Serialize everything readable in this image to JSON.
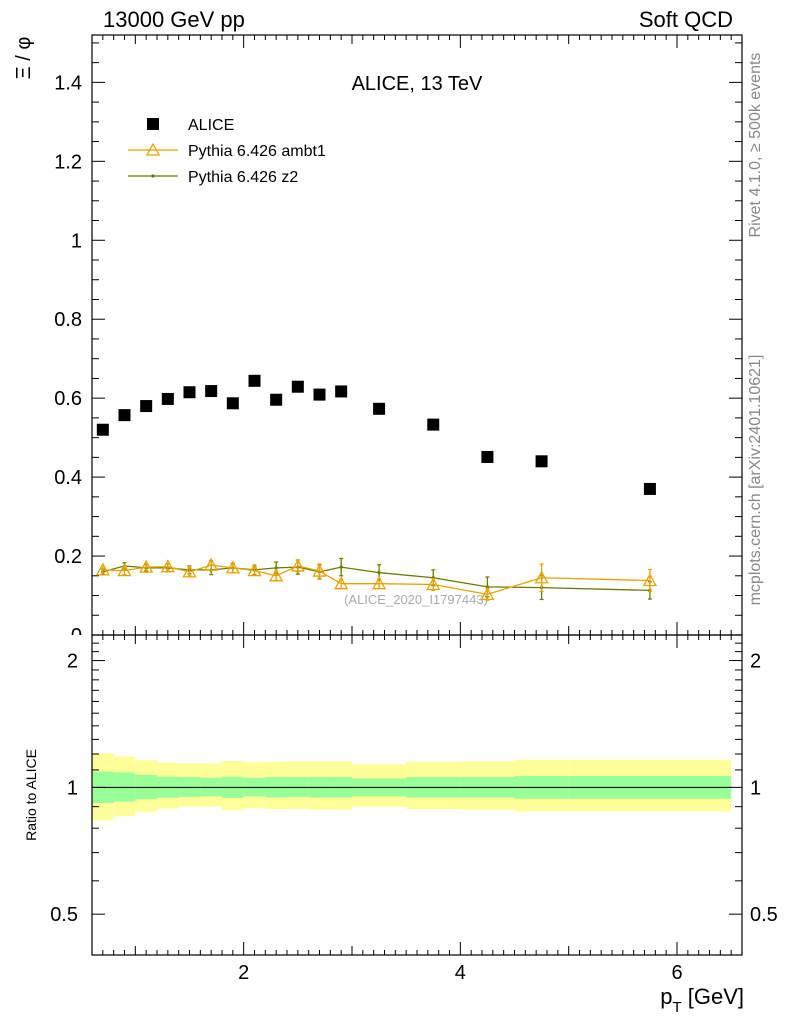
{
  "header": {
    "left": "13000 GeV pp",
    "right": "Soft QCD"
  },
  "side_labels": {
    "rivet": "Rivet 4.1.0, ≥ 500k events",
    "mcplots": "mcplots.cern.ch [arXiv:2401.10621]"
  },
  "chart_data": {
    "type": "scatter",
    "title": "ALICE, 13 TeV",
    "watermark": "(ALICE_2020_I1797443)",
    "xlabel": "p_T [GeV]",
    "ylabel": "Ξ / φ",
    "xlim": [
      0.6,
      6.6
    ],
    "ylim": [
      0,
      1.52
    ],
    "x_ticks": [
      2,
      4,
      6
    ],
    "y_ticks": [
      0.2,
      0.4,
      0.6,
      0.8,
      1,
      1.2,
      1.4
    ],
    "legend_position": "top-left",
    "series": [
      {
        "name": "ALICE",
        "marker": "square",
        "color": "#000000",
        "x": [
          0.7,
          0.9,
          1.1,
          1.3,
          1.5,
          1.7,
          1.9,
          2.1,
          2.3,
          2.5,
          2.7,
          2.9,
          3.25,
          3.75,
          4.25,
          4.75,
          5.75
        ],
        "values": [
          0.52,
          0.557,
          0.58,
          0.598,
          0.615,
          0.618,
          0.587,
          0.644,
          0.596,
          0.629,
          0.609,
          0.617,
          0.573,
          0.533,
          0.451,
          0.44,
          0.37
        ]
      },
      {
        "name": "Pythia 6.426 ambt1",
        "marker": "triangle",
        "color": "#e8a200",
        "x": [
          0.7,
          0.9,
          1.1,
          1.3,
          1.5,
          1.7,
          1.9,
          2.1,
          2.3,
          2.5,
          2.7,
          2.9,
          3.25,
          3.75,
          4.25,
          4.75,
          5.75
        ],
        "values": [
          0.165,
          0.163,
          0.172,
          0.173,
          0.16,
          0.177,
          0.17,
          0.163,
          0.15,
          0.175,
          0.162,
          0.13,
          0.13,
          0.128,
          0.103,
          0.145,
          0.138
        ],
        "errors": [
          0.008,
          0.01,
          0.008,
          0.008,
          0.01,
          0.012,
          0.012,
          0.012,
          0.012,
          0.015,
          0.018,
          0.012,
          0.012,
          0.015,
          0.015,
          0.035,
          0.028
        ]
      },
      {
        "name": "Pythia 6.426 z2",
        "marker": "dot",
        "color": "#6b7a00",
        "x": [
          0.7,
          0.9,
          1.1,
          1.3,
          1.5,
          1.7,
          1.9,
          2.1,
          2.3,
          2.5,
          2.7,
          2.9,
          3.25,
          3.75,
          4.25,
          4.75,
          5.75
        ],
        "values": [
          0.16,
          0.175,
          0.17,
          0.17,
          0.165,
          0.165,
          0.17,
          0.165,
          0.17,
          0.172,
          0.16,
          0.172,
          0.158,
          0.145,
          0.122,
          0.12,
          0.113
        ],
        "errors": [
          0.007,
          0.008,
          0.008,
          0.01,
          0.01,
          0.012,
          0.012,
          0.012,
          0.015,
          0.018,
          0.018,
          0.022,
          0.02,
          0.02,
          0.025,
          0.03,
          0.022
        ]
      }
    ],
    "ratio": {
      "ylabel": "Ratio to ALICE",
      "ylim": [
        0.4,
        2.3
      ],
      "y_ticks": [
        0.5,
        1,
        2
      ],
      "reference": 1,
      "edges": [
        0.6,
        0.8,
        1.0,
        1.2,
        1.4,
        1.6,
        1.8,
        2.0,
        2.2,
        2.4,
        2.6,
        2.8,
        3.0,
        3.5,
        4.0,
        4.5,
        5.0,
        6.5
      ],
      "inner_low": [
        0.918,
        0.925,
        0.937,
        0.945,
        0.949,
        0.952,
        0.944,
        0.952,
        0.946,
        0.949,
        0.946,
        0.946,
        0.952,
        0.946,
        0.946,
        0.94,
        0.94
      ],
      "inner_high": [
        1.09,
        1.085,
        1.07,
        1.06,
        1.058,
        1.054,
        1.06,
        1.054,
        1.058,
        1.058,
        1.058,
        1.058,
        1.05,
        1.058,
        1.058,
        1.064,
        1.064
      ],
      "outer_low": [
        0.835,
        0.855,
        0.875,
        0.89,
        0.9,
        0.9,
        0.882,
        0.892,
        0.888,
        0.889,
        0.886,
        0.885,
        0.9,
        0.888,
        0.885,
        0.877,
        0.877
      ],
      "outer_high": [
        1.205,
        1.185,
        1.16,
        1.145,
        1.14,
        1.14,
        1.155,
        1.148,
        1.15,
        1.153,
        1.153,
        1.153,
        1.135,
        1.15,
        1.153,
        1.163,
        1.163
      ]
    }
  }
}
